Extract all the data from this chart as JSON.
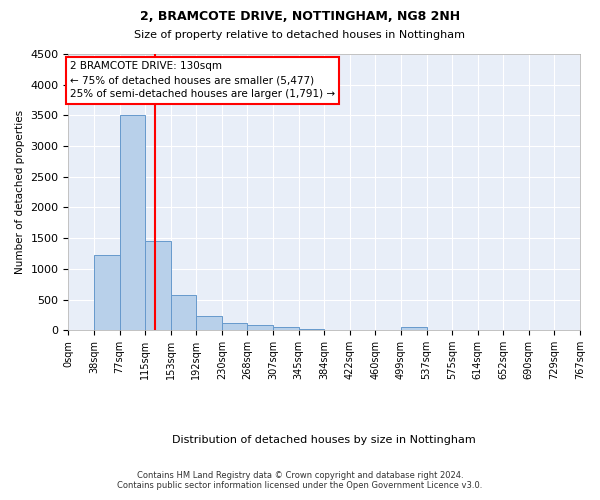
{
  "title1": "2, BRAMCOTE DRIVE, NOTTINGHAM, NG8 2NH",
  "title2": "Size of property relative to detached houses in Nottingham",
  "xlabel": "Distribution of detached houses by size in Nottingham",
  "ylabel": "Number of detached properties",
  "bar_values": [
    5,
    1230,
    3500,
    1460,
    570,
    235,
    115,
    80,
    45,
    28,
    5,
    0,
    0,
    55,
    0,
    0,
    0,
    0,
    0,
    0
  ],
  "bin_labels": [
    "0sqm",
    "38sqm",
    "77sqm",
    "115sqm",
    "153sqm",
    "192sqm",
    "230sqm",
    "268sqm",
    "307sqm",
    "345sqm",
    "384sqm",
    "422sqm",
    "460sqm",
    "499sqm",
    "537sqm",
    "575sqm",
    "614sqm",
    "652sqm",
    "690sqm",
    "729sqm",
    "767sqm"
  ],
  "bar_color": "#b8d0ea",
  "bar_edge_color": "#6699cc",
  "vline_x_bin": 3,
  "vline_color": "red",
  "annotation_text_line1": "2 BRAMCOTE DRIVE: 130sqm",
  "annotation_text_line2": "← 75% of detached houses are smaller (5,477)",
  "annotation_text_line3": "25% of semi-detached houses are larger (1,791) →",
  "bg_color": "#e8eef8",
  "grid_color": "#ffffff",
  "footer_line1": "Contains HM Land Registry data © Crown copyright and database right 2024.",
  "footer_line2": "Contains public sector information licensed under the Open Government Licence v3.0.",
  "ylim": [
    0,
    4500
  ],
  "yticks": [
    0,
    500,
    1000,
    1500,
    2000,
    2500,
    3000,
    3500,
    4000,
    4500
  ],
  "bin_width": 38,
  "figsize": [
    6.0,
    5.0
  ],
  "dpi": 100
}
